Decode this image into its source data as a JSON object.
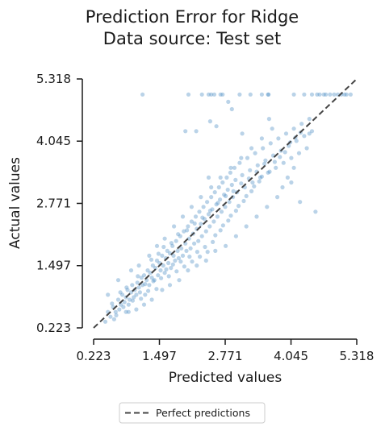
{
  "chart_data": {
    "type": "scatter",
    "title_lines": [
      "Prediction Error for Ridge",
      "Data source: Test set"
    ],
    "xlabel": "Predicted values",
    "ylabel": "Actual values",
    "xlim": [
      0.223,
      5.318
    ],
    "ylim": [
      0.223,
      5.318
    ],
    "xticks": [
      "0.223",
      "1.497",
      "2.771",
      "4.045",
      "5.318"
    ],
    "yticks": [
      "0.223",
      "1.497",
      "2.771",
      "4.045",
      "5.318"
    ],
    "grid": false,
    "legend": {
      "placement": "bottom-center",
      "entries": [
        "Perfect predictions"
      ]
    },
    "reference_line": {
      "name": "Perfect predictions",
      "from": [
        0.223,
        0.223
      ],
      "to": [
        5.318,
        5.318
      ]
    },
    "point_color": "#4a8cc2",
    "line_color": "#444444",
    "points": [
      [
        1.17,
        5.0
      ],
      [
        2.06,
        5.0
      ],
      [
        2.32,
        5.0
      ],
      [
        2.45,
        5.0
      ],
      [
        2.5,
        5.0
      ],
      [
        2.56,
        5.0
      ],
      [
        2.68,
        5.0
      ],
      [
        2.72,
        5.0
      ],
      [
        3.05,
        5.0
      ],
      [
        3.26,
        5.0
      ],
      [
        3.48,
        5.0
      ],
      [
        3.6,
        5.0
      ],
      [
        3.61,
        5.0
      ],
      [
        4.1,
        5.0
      ],
      [
        4.3,
        5.0
      ],
      [
        4.45,
        5.0
      ],
      [
        4.55,
        5.0
      ],
      [
        4.6,
        5.0
      ],
      [
        4.68,
        5.0
      ],
      [
        4.72,
        5.0
      ],
      [
        4.8,
        5.0
      ],
      [
        4.88,
        5.0
      ],
      [
        4.95,
        5.0
      ],
      [
        5.02,
        5.0
      ],
      [
        5.08,
        5.0
      ],
      [
        5.12,
        5.0
      ],
      [
        5.2,
        5.0
      ],
      [
        2.83,
        4.85
      ],
      [
        2.9,
        4.7
      ],
      [
        2.48,
        4.45
      ],
      [
        2.21,
        4.25
      ],
      [
        2.6,
        4.35
      ],
      [
        3.62,
        4.5
      ],
      [
        4.4,
        4.2
      ],
      [
        4.05,
        3.2
      ],
      [
        4.22,
        2.8
      ],
      [
        4.52,
        2.6
      ],
      [
        3.1,
        4.2
      ],
      [
        2.45,
        3.3
      ],
      [
        2.0,
        4.25
      ],
      [
        0.45,
        0.35
      ],
      [
        0.5,
        0.55
      ],
      [
        0.55,
        0.45
      ],
      [
        0.6,
        0.65
      ],
      [
        0.65,
        0.55
      ],
      [
        0.7,
        0.8
      ],
      [
        0.72,
        0.6
      ],
      [
        0.75,
        0.7
      ],
      [
        0.78,
        0.9
      ],
      [
        0.8,
        0.65
      ],
      [
        0.82,
        0.75
      ],
      [
        0.85,
        0.85
      ],
      [
        0.88,
        1.0
      ],
      [
        0.9,
        0.7
      ],
      [
        0.92,
        0.8
      ],
      [
        0.95,
        0.95
      ],
      [
        0.97,
        1.1
      ],
      [
        1.0,
        0.85
      ],
      [
        1.02,
        1.0
      ],
      [
        1.05,
        0.9
      ],
      [
        1.07,
        1.15
      ],
      [
        1.1,
        1.05
      ],
      [
        1.12,
        0.95
      ],
      [
        1.15,
        1.25
      ],
      [
        1.17,
        1.1
      ],
      [
        1.2,
        1.3
      ],
      [
        1.22,
        0.9
      ],
      [
        1.25,
        1.2
      ],
      [
        1.27,
        1.4
      ],
      [
        1.3,
        1.1
      ],
      [
        1.32,
        1.35
      ],
      [
        1.35,
        1.25
      ],
      [
        1.37,
        1.5
      ],
      [
        1.4,
        1.2
      ],
      [
        1.42,
        1.45
      ],
      [
        1.45,
        1.6
      ],
      [
        1.47,
        1.3
      ],
      [
        1.5,
        1.55
      ],
      [
        1.52,
        1.4
      ],
      [
        1.55,
        1.7
      ],
      [
        1.57,
        1.5
      ],
      [
        1.6,
        1.35
      ],
      [
        1.62,
        1.65
      ],
      [
        1.65,
        1.8
      ],
      [
        1.67,
        1.55
      ],
      [
        1.7,
        1.75
      ],
      [
        1.72,
        1.45
      ],
      [
        1.75,
        1.9
      ],
      [
        1.77,
        1.7
      ],
      [
        1.8,
        1.6
      ],
      [
        1.82,
        2.0
      ],
      [
        1.85,
        1.8
      ],
      [
        1.87,
        1.65
      ],
      [
        1.9,
        2.1
      ],
      [
        1.92,
        1.85
      ],
      [
        1.95,
        1.7
      ],
      [
        1.97,
        2.2
      ],
      [
        2.0,
        1.95
      ],
      [
        2.02,
        1.8
      ],
      [
        2.05,
        2.3
      ],
      [
        2.07,
        2.05
      ],
      [
        2.1,
        1.85
      ],
      [
        2.12,
        2.4
      ],
      [
        2.15,
        2.15
      ],
      [
        2.17,
        1.95
      ],
      [
        2.2,
        2.5
      ],
      [
        2.22,
        2.25
      ],
      [
        2.25,
        2.0
      ],
      [
        2.27,
        2.6
      ],
      [
        2.3,
        2.35
      ],
      [
        2.32,
        2.1
      ],
      [
        2.35,
        2.7
      ],
      [
        2.37,
        2.45
      ],
      [
        2.4,
        2.2
      ],
      [
        2.42,
        2.8
      ],
      [
        2.45,
        2.55
      ],
      [
        2.47,
        2.3
      ],
      [
        2.5,
        2.9
      ],
      [
        2.52,
        2.65
      ],
      [
        2.55,
        2.4
      ],
      [
        2.57,
        3.0
      ],
      [
        2.6,
        2.75
      ],
      [
        2.62,
        2.5
      ],
      [
        2.65,
        3.1
      ],
      [
        2.67,
        2.85
      ],
      [
        2.7,
        2.6
      ],
      [
        2.72,
        3.2
      ],
      [
        2.75,
        2.95
      ],
      [
        2.77,
        2.7
      ],
      [
        2.8,
        3.3
      ],
      [
        2.82,
        3.05
      ],
      [
        2.85,
        2.8
      ],
      [
        2.87,
        3.4
      ],
      [
        2.9,
        3.15
      ],
      [
        2.92,
        2.9
      ],
      [
        2.95,
        3.5
      ],
      [
        2.97,
        3.25
      ],
      [
        3.0,
        3.0
      ],
      [
        3.05,
        3.6
      ],
      [
        3.1,
        3.35
      ],
      [
        3.15,
        3.1
      ],
      [
        3.2,
        3.7
      ],
      [
        3.25,
        3.45
      ],
      [
        3.3,
        3.2
      ],
      [
        3.35,
        3.8
      ],
      [
        3.4,
        3.55
      ],
      [
        3.45,
        3.3
      ],
      [
        3.5,
        3.9
      ],
      [
        3.55,
        3.65
      ],
      [
        3.6,
        3.4
      ],
      [
        3.65,
        4.0
      ],
      [
        3.7,
        3.75
      ],
      [
        3.75,
        3.5
      ],
      [
        3.8,
        4.1
      ],
      [
        3.85,
        3.85
      ],
      [
        3.9,
        3.6
      ],
      [
        3.95,
        4.2
      ],
      [
        4.0,
        3.95
      ],
      [
        4.05,
        3.7
      ],
      [
        4.1,
        4.3
      ],
      [
        4.15,
        4.05
      ],
      [
        4.2,
        3.8
      ],
      [
        4.25,
        4.4
      ],
      [
        4.3,
        4.15
      ],
      [
        4.35,
        3.9
      ],
      [
        4.4,
        4.5
      ],
      [
        4.45,
        4.25
      ],
      [
        0.5,
        0.9
      ],
      [
        0.62,
        0.4
      ],
      [
        0.7,
        1.2
      ],
      [
        0.85,
        0.55
      ],
      [
        0.95,
        1.4
      ],
      [
        1.05,
        0.6
      ],
      [
        1.1,
        1.5
      ],
      [
        1.2,
        0.7
      ],
      [
        1.3,
        1.7
      ],
      [
        1.35,
        0.8
      ],
      [
        1.45,
        1.9
      ],
      [
        1.55,
        1.0
      ],
      [
        1.6,
        2.05
      ],
      [
        1.7,
        1.1
      ],
      [
        1.78,
        2.3
      ],
      [
        1.88,
        1.2
      ],
      [
        1.95,
        2.5
      ],
      [
        2.05,
        1.4
      ],
      [
        2.12,
        2.7
      ],
      [
        2.22,
        1.5
      ],
      [
        2.3,
        2.9
      ],
      [
        2.4,
        1.6
      ],
      [
        2.5,
        3.1
      ],
      [
        2.58,
        1.8
      ],
      [
        2.68,
        3.3
      ],
      [
        2.78,
        1.9
      ],
      [
        2.88,
        3.5
      ],
      [
        2.98,
        2.1
      ],
      [
        3.08,
        3.7
      ],
      [
        3.18,
        2.3
      ],
      [
        3.28,
        3.9
      ],
      [
        3.38,
        2.5
      ],
      [
        3.48,
        4.1
      ],
      [
        3.58,
        2.7
      ],
      [
        3.68,
        4.3
      ],
      [
        3.78,
        2.9
      ],
      [
        3.88,
        3.1
      ],
      [
        3.98,
        3.3
      ],
      [
        4.1,
        3.5
      ],
      [
        0.58,
        0.72
      ],
      [
        0.66,
        0.48
      ],
      [
        0.74,
        0.95
      ],
      [
        0.86,
        1.05
      ],
      [
        0.9,
        0.55
      ],
      [
        0.98,
        0.78
      ],
      [
        1.08,
        1.28
      ],
      [
        1.14,
        0.82
      ],
      [
        1.22,
        1.12
      ],
      [
        1.28,
        0.98
      ],
      [
        1.34,
        1.62
      ],
      [
        1.38,
        1.18
      ],
      [
        1.44,
        1.02
      ],
      [
        1.48,
        1.74
      ],
      [
        1.53,
        1.24
      ],
      [
        1.58,
        1.88
      ],
      [
        1.63,
        1.42
      ],
      [
        1.68,
        1.28
      ],
      [
        1.73,
        1.96
      ],
      [
        1.76,
        1.52
      ],
      [
        1.83,
        1.38
      ],
      [
        1.86,
        2.14
      ],
      [
        1.91,
        1.58
      ],
      [
        1.98,
        1.48
      ],
      [
        2.03,
        2.22
      ],
      [
        2.08,
        1.68
      ],
      [
        2.13,
        1.58
      ],
      [
        2.18,
        2.36
      ],
      [
        2.23,
        1.78
      ],
      [
        2.28,
        1.68
      ],
      [
        2.33,
        2.48
      ],
      [
        2.38,
        1.88
      ],
      [
        2.43,
        1.78
      ],
      [
        2.48,
        2.62
      ],
      [
        2.53,
        1.98
      ],
      [
        2.58,
        2.12
      ],
      [
        2.63,
        2.78
      ],
      [
        2.68,
        2.22
      ],
      [
        2.73,
        2.32
      ],
      [
        2.78,
        2.92
      ],
      [
        2.83,
        2.42
      ],
      [
        2.88,
        2.52
      ],
      [
        2.93,
        3.02
      ],
      [
        2.98,
        2.62
      ],
      [
        3.03,
        2.72
      ],
      [
        3.08,
        3.18
      ],
      [
        3.13,
        2.82
      ],
      [
        3.18,
        2.92
      ],
      [
        3.23,
        3.28
      ],
      [
        3.28,
        3.02
      ],
      [
        3.33,
        3.12
      ],
      [
        3.38,
        3.42
      ],
      [
        3.43,
        3.22
      ],
      [
        3.48,
        3.32
      ],
      [
        3.53,
        3.58
      ],
      [
        3.63,
        3.42
      ],
      [
        3.73,
        3.62
      ],
      [
        3.83,
        3.72
      ],
      [
        3.93,
        3.82
      ],
      [
        4.03,
        4.02
      ],
      [
        4.13,
        4.12
      ],
      [
        4.23,
        4.22
      ]
    ]
  }
}
